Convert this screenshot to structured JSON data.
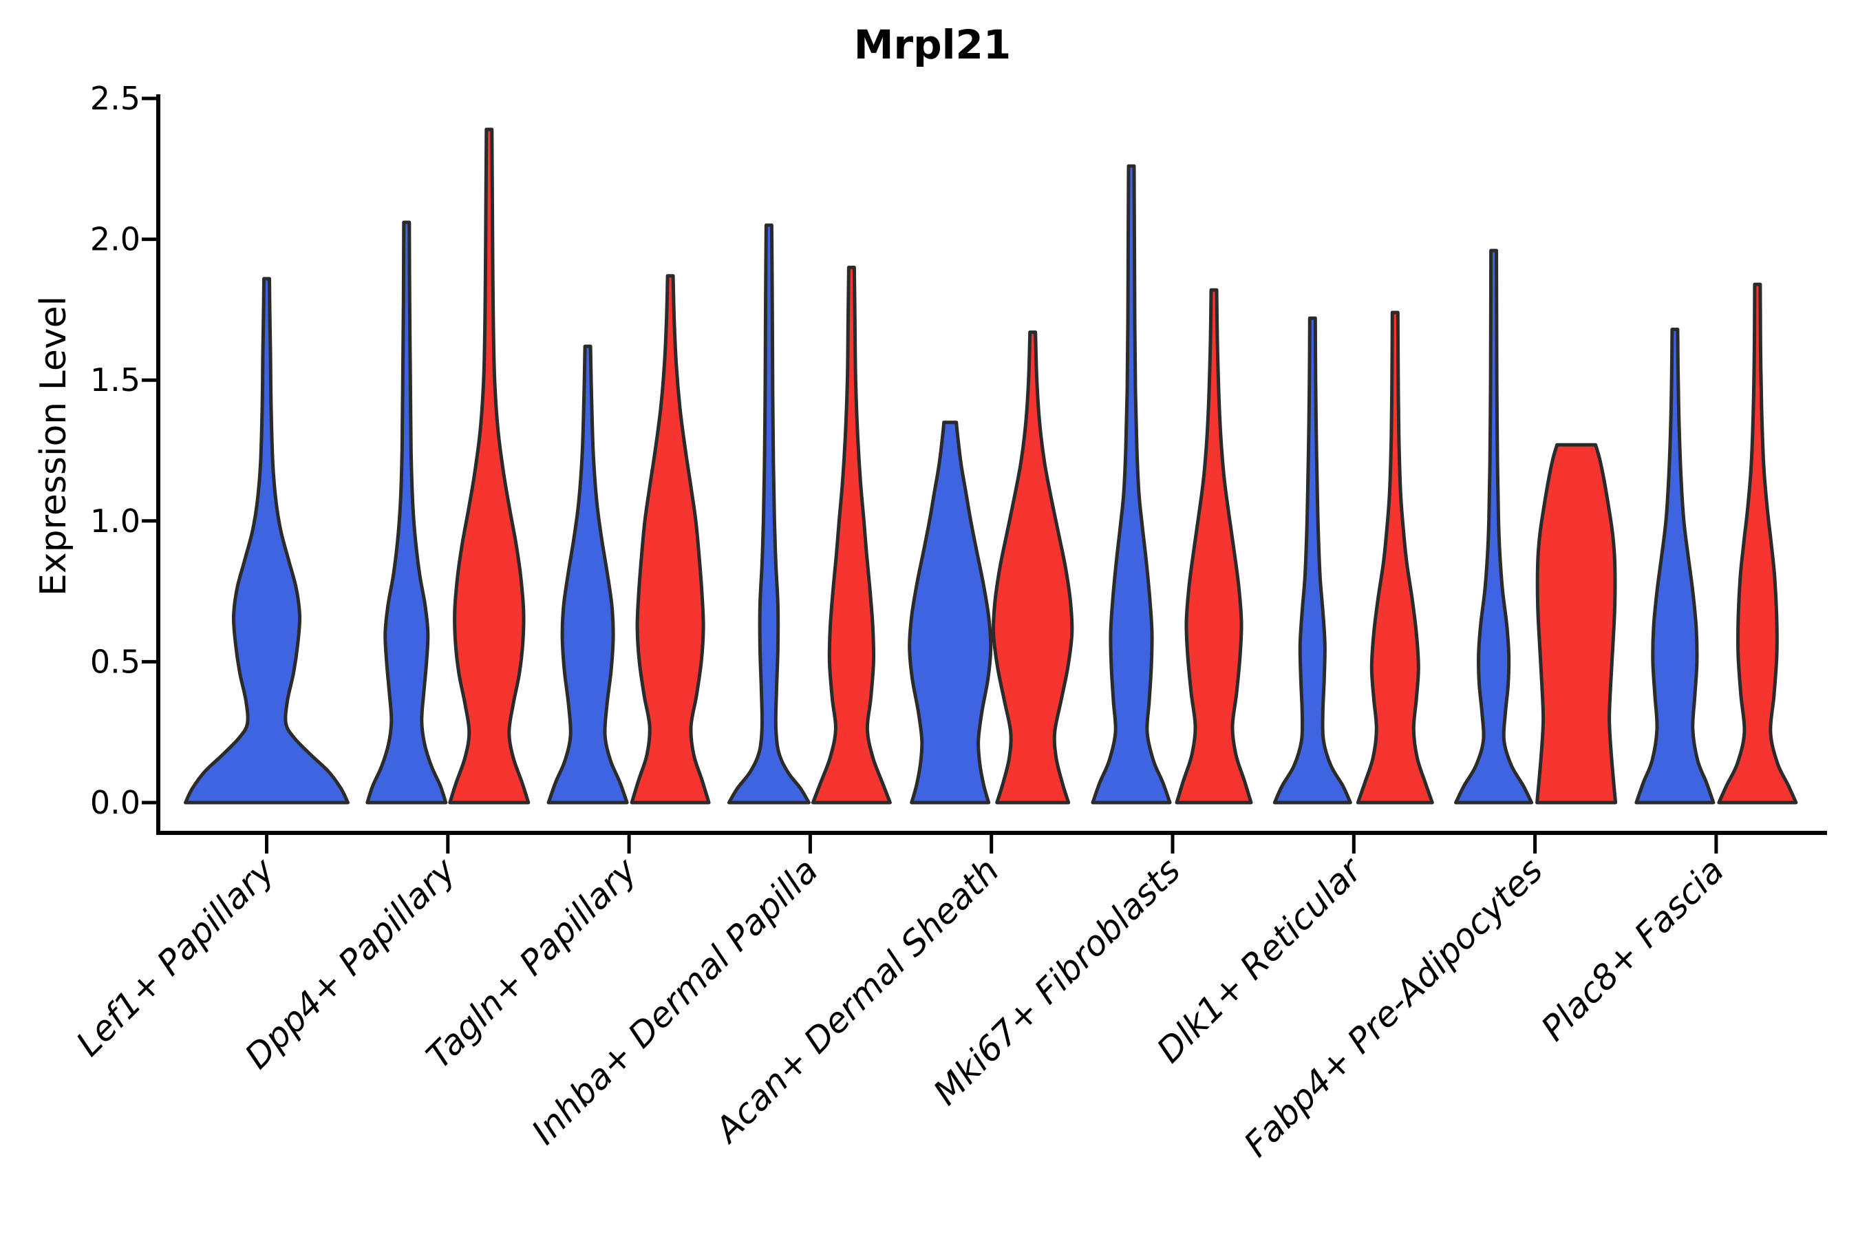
{
  "chart_data": {
    "type": "violin",
    "title": "Mrpl21",
    "xlabel": "",
    "ylabel": "Expression Level",
    "ylim": [
      0.0,
      2.5
    ],
    "ytick_values": [
      0.0,
      0.5,
      1.0,
      1.5,
      2.0,
      2.5
    ],
    "ytick_labels": [
      "0.0",
      "0.5",
      "1.0",
      "1.5",
      "2.0",
      "2.5"
    ],
    "grid": false,
    "legend_position": "none",
    "outline_color": "#2b2b2b",
    "series": [
      {
        "name": "blue",
        "color": "#3f64e2"
      },
      {
        "name": "red",
        "color": "#f63530"
      }
    ],
    "categories": [
      "Lef1+ Papillary",
      "Dpp4+ Papillary",
      "Tagln+ Papillary",
      "Inhba+ Dermal Papilla",
      "Acan+ Dermal Sheath",
      "Mki67+ Fibroblasts",
      "Dlk1+ Reticular",
      "Fabp4+ Pre-Adipocytes",
      "Plac8+ Fascia"
    ],
    "violins": [
      {
        "category": "Lef1+ Papillary",
        "series": "blue",
        "single": true,
        "max_expression": 1.86,
        "profile": [
          [
            0,
            118
          ],
          [
            0.05,
            108
          ],
          [
            0.11,
            90
          ],
          [
            0.17,
            64
          ],
          [
            0.23,
            40
          ],
          [
            0.28,
            28
          ],
          [
            0.36,
            30
          ],
          [
            0.46,
            39
          ],
          [
            0.56,
            45
          ],
          [
            0.66,
            48
          ],
          [
            0.76,
            43
          ],
          [
            0.86,
            32
          ],
          [
            0.96,
            21
          ],
          [
            1.06,
            14
          ],
          [
            1.2,
            9
          ],
          [
            1.4,
            6.5
          ],
          [
            1.6,
            5.5
          ],
          [
            1.75,
            4.5
          ],
          [
            1.86,
            4
          ]
        ]
      },
      {
        "category": "Dpp4+ Papillary",
        "series": "blue",
        "single": false,
        "max_expression": 2.06,
        "profile": [
          [
            0,
            57
          ],
          [
            0.06,
            49
          ],
          [
            0.13,
            36
          ],
          [
            0.21,
            26
          ],
          [
            0.29,
            22
          ],
          [
            0.39,
            25
          ],
          [
            0.5,
            29
          ],
          [
            0.6,
            31
          ],
          [
            0.7,
            27
          ],
          [
            0.81,
            19
          ],
          [
            0.93,
            13
          ],
          [
            1.06,
            9
          ],
          [
            1.25,
            6.5
          ],
          [
            1.5,
            5.5
          ],
          [
            1.78,
            4.5
          ],
          [
            2.06,
            4
          ]
        ]
      },
      {
        "category": "Dpp4+ Papillary",
        "series": "red",
        "single": false,
        "max_expression": 2.39,
        "profile": [
          [
            0,
            57
          ],
          [
            0.07,
            48
          ],
          [
            0.16,
            35
          ],
          [
            0.25,
            29
          ],
          [
            0.35,
            35
          ],
          [
            0.46,
            44
          ],
          [
            0.57,
            49
          ],
          [
            0.68,
            50
          ],
          [
            0.8,
            46
          ],
          [
            0.92,
            39
          ],
          [
            1.04,
            30
          ],
          [
            1.17,
            21
          ],
          [
            1.32,
            13
          ],
          [
            1.5,
            8
          ],
          [
            1.72,
            6
          ],
          [
            2.0,
            5
          ],
          [
            2.2,
            4.5
          ],
          [
            2.39,
            4
          ]
        ]
      },
      {
        "category": "Tagln+ Papillary",
        "series": "blue",
        "single": false,
        "max_expression": 1.62,
        "profile": [
          [
            0,
            57
          ],
          [
            0.07,
            47
          ],
          [
            0.15,
            33
          ],
          [
            0.24,
            25
          ],
          [
            0.35,
            28
          ],
          [
            0.47,
            34
          ],
          [
            0.59,
            37
          ],
          [
            0.7,
            35
          ],
          [
            0.82,
            28
          ],
          [
            0.94,
            20
          ],
          [
            1.07,
            13
          ],
          [
            1.24,
            8
          ],
          [
            1.44,
            5.5
          ],
          [
            1.62,
            4
          ]
        ]
      },
      {
        "category": "Tagln+ Papillary",
        "series": "red",
        "single": false,
        "max_expression": 1.87,
        "profile": [
          [
            0,
            56
          ],
          [
            0.08,
            46
          ],
          [
            0.17,
            34
          ],
          [
            0.27,
            30
          ],
          [
            0.38,
            38
          ],
          [
            0.5,
            45
          ],
          [
            0.62,
            48
          ],
          [
            0.74,
            46
          ],
          [
            0.87,
            42
          ],
          [
            1.0,
            37
          ],
          [
            1.12,
            30
          ],
          [
            1.25,
            22
          ],
          [
            1.4,
            14
          ],
          [
            1.56,
            8.5
          ],
          [
            1.72,
            5.5
          ],
          [
            1.87,
            4
          ]
        ]
      },
      {
        "category": "Inhba+ Dermal Papilla",
        "series": "blue",
        "single": false,
        "max_expression": 2.05,
        "profile": [
          [
            0,
            58
          ],
          [
            0.05,
            46
          ],
          [
            0.11,
            27
          ],
          [
            0.18,
            14
          ],
          [
            0.27,
            10
          ],
          [
            0.4,
            11
          ],
          [
            0.55,
            13
          ],
          [
            0.7,
            13
          ],
          [
            0.85,
            10
          ],
          [
            1.0,
            8
          ],
          [
            1.2,
            6.5
          ],
          [
            1.45,
            5.5
          ],
          [
            1.7,
            5
          ],
          [
            1.9,
            4.5
          ],
          [
            2.05,
            4
          ]
        ]
      },
      {
        "category": "Inhba+ Dermal Papilla",
        "series": "red",
        "single": false,
        "max_expression": 1.9,
        "profile": [
          [
            0,
            56
          ],
          [
            0.07,
            45
          ],
          [
            0.16,
            31
          ],
          [
            0.26,
            23
          ],
          [
            0.37,
            28
          ],
          [
            0.5,
            32
          ],
          [
            0.62,
            31
          ],
          [
            0.75,
            27
          ],
          [
            0.88,
            22
          ],
          [
            1.0,
            18
          ],
          [
            1.14,
            13
          ],
          [
            1.3,
            9
          ],
          [
            1.5,
            6
          ],
          [
            1.7,
            5
          ],
          [
            1.9,
            4
          ]
        ]
      },
      {
        "category": "Acan+ Dermal Sheath",
        "series": "blue",
        "single": false,
        "max_expression": 1.35,
        "profile": [
          [
            0,
            56
          ],
          [
            0.06,
            49
          ],
          [
            0.14,
            43
          ],
          [
            0.22,
            41
          ],
          [
            0.32,
            46
          ],
          [
            0.44,
            55
          ],
          [
            0.55,
            59
          ],
          [
            0.66,
            56
          ],
          [
            0.78,
            48
          ],
          [
            0.9,
            38
          ],
          [
            1.0,
            30
          ],
          [
            1.1,
            23
          ],
          [
            1.2,
            16
          ],
          [
            1.3,
            11
          ],
          [
            1.35,
            9
          ]
        ]
      },
      {
        "category": "Acan+ Dermal Sheath",
        "series": "red",
        "single": false,
        "max_expression": 1.67,
        "profile": [
          [
            0,
            52
          ],
          [
            0.07,
            43
          ],
          [
            0.16,
            34
          ],
          [
            0.25,
            32
          ],
          [
            0.36,
            41
          ],
          [
            0.48,
            51
          ],
          [
            0.6,
            57
          ],
          [
            0.71,
            55
          ],
          [
            0.83,
            48
          ],
          [
            0.95,
            38
          ],
          [
            1.08,
            27
          ],
          [
            1.21,
            17
          ],
          [
            1.35,
            10
          ],
          [
            1.5,
            6
          ],
          [
            1.67,
            4
          ]
        ]
      },
      {
        "category": "Mki67+ Fibroblasts",
        "series": "blue",
        "single": false,
        "max_expression": 2.26,
        "profile": [
          [
            0,
            56
          ],
          [
            0.07,
            46
          ],
          [
            0.15,
            32
          ],
          [
            0.25,
            23
          ],
          [
            0.36,
            26
          ],
          [
            0.48,
            29
          ],
          [
            0.6,
            30
          ],
          [
            0.72,
            27
          ],
          [
            0.85,
            22
          ],
          [
            0.98,
            16
          ],
          [
            1.1,
            11
          ],
          [
            1.26,
            8
          ],
          [
            1.46,
            6
          ],
          [
            1.7,
            5
          ],
          [
            2.0,
            4.5
          ],
          [
            2.26,
            4
          ]
        ]
      },
      {
        "category": "Mki67+ Fibroblasts",
        "series": "red",
        "single": false,
        "max_expression": 1.82,
        "profile": [
          [
            0,
            54
          ],
          [
            0.08,
            44
          ],
          [
            0.17,
            32
          ],
          [
            0.27,
            27
          ],
          [
            0.39,
            33
          ],
          [
            0.52,
            38
          ],
          [
            0.64,
            40
          ],
          [
            0.77,
            36
          ],
          [
            0.9,
            29
          ],
          [
            1.02,
            22
          ],
          [
            1.15,
            15
          ],
          [
            1.3,
            10
          ],
          [
            1.46,
            7
          ],
          [
            1.64,
            5
          ],
          [
            1.82,
            4
          ]
        ]
      },
      {
        "category": "Dlk1+ Reticular",
        "series": "blue",
        "single": false,
        "max_expression": 1.72,
        "profile": [
          [
            0,
            55
          ],
          [
            0.06,
            44
          ],
          [
            0.13,
            27
          ],
          [
            0.22,
            16
          ],
          [
            0.32,
            15
          ],
          [
            0.44,
            17
          ],
          [
            0.56,
            18
          ],
          [
            0.68,
            15
          ],
          [
            0.8,
            11
          ],
          [
            0.95,
            8.5
          ],
          [
            1.1,
            7
          ],
          [
            1.3,
            5.5
          ],
          [
            1.5,
            4.5
          ],
          [
            1.72,
            4
          ]
        ]
      },
      {
        "category": "Dlk1+ Reticular",
        "series": "red",
        "single": false,
        "max_expression": 1.74,
        "profile": [
          [
            0,
            54
          ],
          [
            0.07,
            44
          ],
          [
            0.16,
            32
          ],
          [
            0.26,
            27
          ],
          [
            0.37,
            31
          ],
          [
            0.48,
            34
          ],
          [
            0.6,
            31
          ],
          [
            0.72,
            25
          ],
          [
            0.85,
            17
          ],
          [
            0.97,
            12
          ],
          [
            1.1,
            8
          ],
          [
            1.3,
            5.5
          ],
          [
            1.52,
            4.5
          ],
          [
            1.74,
            4
          ]
        ]
      },
      {
        "category": "Fabp4+ Pre-Adipocytes",
        "series": "blue",
        "single": false,
        "max_expression": 1.96,
        "profile": [
          [
            0,
            55
          ],
          [
            0.06,
            43
          ],
          [
            0.13,
            26
          ],
          [
            0.22,
            15
          ],
          [
            0.32,
            17
          ],
          [
            0.42,
            21
          ],
          [
            0.52,
            22
          ],
          [
            0.63,
            19
          ],
          [
            0.75,
            13
          ],
          [
            0.88,
            9
          ],
          [
            1.0,
            7
          ],
          [
            1.2,
            5.5
          ],
          [
            1.5,
            4.5
          ],
          [
            1.75,
            4.2
          ],
          [
            1.96,
            4
          ]
        ]
      },
      {
        "category": "Fabp4+ Pre-Adipocytes",
        "series": "red",
        "single": false,
        "max_expression": 1.27,
        "profile": [
          [
            0,
            57
          ],
          [
            0.08,
            54
          ],
          [
            0.2,
            50
          ],
          [
            0.3,
            48
          ],
          [
            0.42,
            50
          ],
          [
            0.55,
            53
          ],
          [
            0.7,
            56
          ],
          [
            0.85,
            56
          ],
          [
            0.95,
            53
          ],
          [
            1.05,
            47
          ],
          [
            1.15,
            40
          ],
          [
            1.22,
            34
          ],
          [
            1.27,
            28
          ]
        ]
      },
      {
        "category": "Plac8+ Fascia",
        "series": "blue",
        "single": false,
        "max_expression": 1.68,
        "profile": [
          [
            0,
            56
          ],
          [
            0.07,
            46
          ],
          [
            0.15,
            33
          ],
          [
            0.26,
            26
          ],
          [
            0.38,
            29
          ],
          [
            0.5,
            32
          ],
          [
            0.62,
            31
          ],
          [
            0.75,
            26
          ],
          [
            0.88,
            19
          ],
          [
            1.0,
            13
          ],
          [
            1.15,
            9
          ],
          [
            1.35,
            6
          ],
          [
            1.55,
            4.5
          ],
          [
            1.68,
            4
          ]
        ]
      },
      {
        "category": "Plac8+ Fascia",
        "series": "red",
        "single": false,
        "max_expression": 1.84,
        "profile": [
          [
            0,
            56
          ],
          [
            0.06,
            45
          ],
          [
            0.14,
            29
          ],
          [
            0.25,
            19
          ],
          [
            0.38,
            24
          ],
          [
            0.52,
            28
          ],
          [
            0.65,
            28
          ],
          [
            0.8,
            25
          ],
          [
            0.92,
            20
          ],
          [
            1.05,
            14
          ],
          [
            1.2,
            9
          ],
          [
            1.4,
            6
          ],
          [
            1.62,
            4.5
          ],
          [
            1.84,
            4
          ]
        ]
      }
    ]
  }
}
